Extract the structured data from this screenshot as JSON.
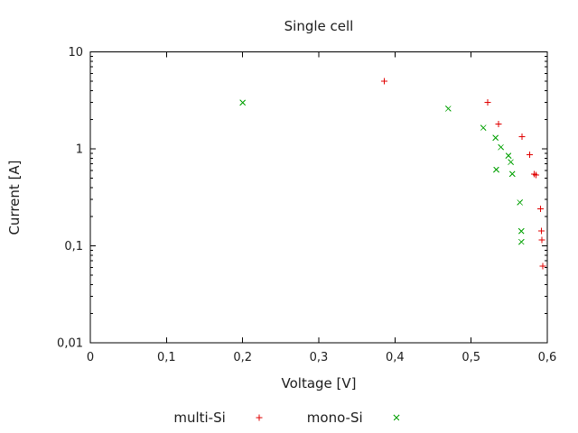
{
  "chart_data": {
    "type": "scatter",
    "title": "Single cell",
    "xlabel": "Voltage [V]",
    "ylabel": "Current [A]",
    "grid": false,
    "frame_color": "#000000",
    "text_color": "#1c1c1c",
    "background_color": "#ffffff",
    "legend_position": "bottom-center",
    "x_axis": {
      "scale": "linear",
      "min": 0,
      "max": 0.6,
      "ticks": [
        {
          "v": 0.0,
          "label": "0"
        },
        {
          "v": 0.1,
          "label": "0,1"
        },
        {
          "v": 0.2,
          "label": "0,2"
        },
        {
          "v": 0.3,
          "label": "0,3"
        },
        {
          "v": 0.4,
          "label": "0,4"
        },
        {
          "v": 0.5,
          "label": "0,5"
        },
        {
          "v": 0.6,
          "label": "0,6"
        }
      ]
    },
    "y_axis": {
      "scale": "log",
      "min": 0.01,
      "max": 10,
      "ticks": [
        {
          "v": 0.01,
          "label": "0,01"
        },
        {
          "v": 0.1,
          "label": "0,1"
        },
        {
          "v": 1,
          "label": "1"
        },
        {
          "v": 10,
          "label": "10"
        }
      ],
      "minor_ticks": "log-decades"
    },
    "series": [
      {
        "name": "multi-Si",
        "marker": "plus",
        "color": "#e00000",
        "points": [
          [
            0.386,
            5.0
          ],
          [
            0.522,
            3.0
          ],
          [
            0.536,
            1.8
          ],
          [
            0.567,
            1.33
          ],
          [
            0.577,
            0.87
          ],
          [
            0.583,
            0.55
          ],
          [
            0.585,
            0.54
          ],
          [
            0.591,
            0.24
          ],
          [
            0.592,
            0.142
          ],
          [
            0.593,
            0.115
          ],
          [
            0.594,
            0.062
          ]
        ]
      },
      {
        "name": "mono-Si",
        "marker": "cross",
        "color": "#00a000",
        "points": [
          [
            0.2,
            3.0
          ],
          [
            0.47,
            2.6
          ],
          [
            0.516,
            1.65
          ],
          [
            0.532,
            1.3
          ],
          [
            0.539,
            1.04
          ],
          [
            0.549,
            0.85
          ],
          [
            0.552,
            0.73
          ],
          [
            0.533,
            0.61
          ],
          [
            0.554,
            0.55
          ],
          [
            0.564,
            0.28
          ],
          [
            0.566,
            0.142
          ],
          [
            0.566,
            0.11
          ]
        ]
      }
    ]
  }
}
